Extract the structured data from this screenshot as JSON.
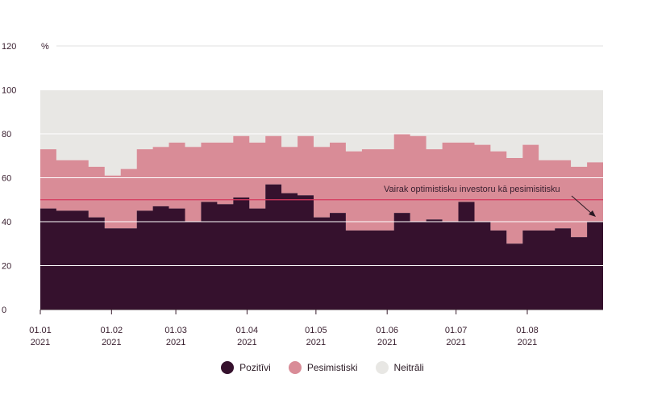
{
  "chart_data": {
    "type": "area",
    "stacked": true,
    "y_unit": "%",
    "ylim": [
      0,
      120
    ],
    "yticks": [
      0,
      20,
      40,
      60,
      80,
      100,
      120
    ],
    "x_tick_labels": [
      {
        "top": "01.01",
        "bottom": "2021"
      },
      {
        "top": "01.02",
        "bottom": "2021"
      },
      {
        "top": "01.03",
        "bottom": "2021"
      },
      {
        "top": "01.04",
        "bottom": "2021"
      },
      {
        "top": "01.05",
        "bottom": "2021"
      },
      {
        "top": "01.06",
        "bottom": "2021"
      },
      {
        "top": "01.07",
        "bottom": "2021"
      },
      {
        "top": "01.08",
        "bottom": "2021"
      }
    ],
    "x_dates": [
      "2021-01-01",
      "2021-01-08",
      "2021-01-15",
      "2021-01-22",
      "2021-01-29",
      "2021-02-05",
      "2021-02-12",
      "2021-02-19",
      "2021-02-26",
      "2021-03-05",
      "2021-03-12",
      "2021-03-19",
      "2021-03-26",
      "2021-04-02",
      "2021-04-09",
      "2021-04-16",
      "2021-04-23",
      "2021-04-30",
      "2021-05-07",
      "2021-05-14",
      "2021-05-21",
      "2021-05-28",
      "2021-06-04",
      "2021-06-11",
      "2021-06-18",
      "2021-06-25",
      "2021-07-02",
      "2021-07-09",
      "2021-07-16",
      "2021-07-23",
      "2021-07-30",
      "2021-08-06",
      "2021-08-13",
      "2021-08-20",
      "2021-08-27"
    ],
    "series": [
      {
        "name": "Pozitīvi",
        "color": "#35112d",
        "values": [
          46,
          45,
          45,
          42,
          37,
          37,
          45,
          47,
          46,
          40,
          49,
          48,
          51,
          46,
          57,
          53,
          52,
          42,
          44,
          36,
          36,
          36,
          44,
          40,
          41,
          40,
          49,
          40,
          36,
          30,
          36,
          36,
          37,
          33,
          40
        ]
      },
      {
        "name": "Pesimistiski",
        "color": "#d98c97",
        "values": [
          27,
          23,
          23,
          23,
          24,
          27,
          28,
          27,
          30,
          34,
          27,
          28,
          28,
          30,
          22,
          21,
          27,
          32,
          32,
          36,
          37,
          37,
          36,
          39,
          32,
          36,
          27,
          35,
          36,
          39,
          39,
          32,
          31,
          32,
          27
        ]
      },
      {
        "name": "Neitrāli",
        "color": "#e8e7e4",
        "values": [
          27,
          32,
          32,
          35,
          39,
          36,
          27,
          26,
          24,
          26,
          24,
          24,
          21,
          24,
          21,
          26,
          21,
          26,
          24,
          28,
          27,
          27,
          20,
          21,
          27,
          24,
          24,
          25,
          28,
          31,
          25,
          32,
          32,
          35,
          33
        ]
      }
    ],
    "reference_line": {
      "value": 50,
      "color": "#d63a5e"
    },
    "annotation": "Vairak optimistisku investoru kā pesimisitisku",
    "legend_position": "bottom-center",
    "grid": true
  }
}
